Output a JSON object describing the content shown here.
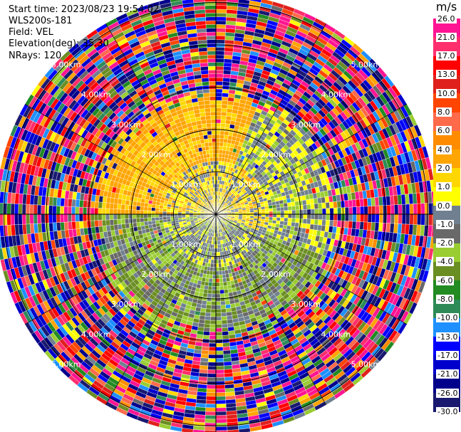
{
  "header": {
    "start_time": "Start time: 2023/08/23 19:54:02",
    "instrument": "WLS200s-181",
    "field": "Field: VEL",
    "elevation": "Elevation(deg): 35.30",
    "nrays": "NRays: 120"
  },
  "colorbar": {
    "unit": "m/s",
    "ticks": [
      "26.0",
      "21.0",
      "17.0",
      "13.0",
      "10.0",
      "8.0",
      "6.0",
      "4.0",
      "2.0",
      "1.0",
      "0.0",
      "-1.0",
      "-2.0",
      "-4.0",
      "-6.0",
      "-8.0",
      "-10.0",
      "-13.0",
      "-17.0",
      "-21.0",
      "-26.0",
      "-30.0"
    ],
    "colors": [
      "#ff1493",
      "#ff2f6e",
      "#ff0000",
      "#e0201c",
      "#ff4500",
      "#ff6a4a",
      "#ff8c00",
      "#ffa500",
      "#ffd700",
      "#ffff00",
      "#708090",
      "#696969",
      "#9acd32",
      "#6b8e23",
      "#228b22",
      "#2e8b57",
      "#1e90ff",
      "#0000ff",
      "#0000cd",
      "#00008b",
      "#191970"
    ]
  },
  "chart_data": {
    "type": "heatmap",
    "projection": "PPI",
    "field": "VEL",
    "units": "m/s",
    "n_rays": 120,
    "range_rings_km": [
      1,
      2,
      3,
      4,
      5
    ],
    "range_ring_labels": [
      "1.00km",
      "2.00km",
      "3.00km",
      "4.00km",
      "5.00km"
    ],
    "max_range_km": 5.2,
    "color_levels": [
      -30,
      -26,
      -21,
      -17,
      -13,
      -10,
      -8,
      -6,
      -4,
      -2,
      -1,
      0,
      1,
      2,
      4,
      6,
      8,
      10,
      13,
      17,
      21,
      26
    ],
    "grid": true,
    "regions": [
      {
        "range_km": [
          0,
          1.3
        ],
        "sectors": "all",
        "dominant_velocity_m_s": [
          -1,
          2
        ],
        "description": "near-zero grey/yellow core"
      },
      {
        "range_km": [
          1.3,
          2.7
        ],
        "sectors": "north-west",
        "dominant_velocity_m_s": [
          1,
          4
        ]
      },
      {
        "range_km": [
          1.3,
          2.7
        ],
        "sectors": "north-east",
        "dominant_velocity_m_s": [
          -1,
          1
        ]
      },
      {
        "range_km": [
          1.3,
          2.7
        ],
        "sectors": "south",
        "dominant_velocity_m_s": [
          -6,
          -2
        ]
      },
      {
        "range_km": [
          2.7,
          5.2
        ],
        "sectors": "all",
        "dominant_velocity_m_s": [
          -30,
          26
        ],
        "description": "noisy aliased returns"
      }
    ]
  }
}
